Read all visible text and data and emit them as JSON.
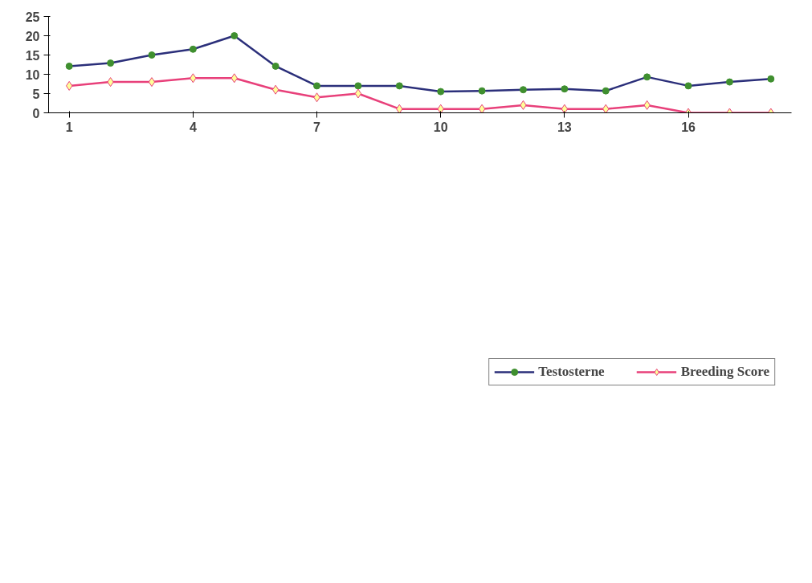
{
  "chart_data": {
    "type": "line",
    "x": [
      1,
      2,
      3,
      4,
      5,
      6,
      7,
      8,
      9,
      10,
      11,
      12,
      13,
      14,
      15,
      16,
      17,
      18
    ],
    "xlim": [
      0.5,
      18.5
    ],
    "xticks": [
      1,
      4,
      7,
      10,
      13,
      16
    ],
    "ylim": [
      0,
      25
    ],
    "yticks": [
      0,
      5,
      10,
      15,
      20,
      25
    ],
    "grid": false,
    "legend": "bottom",
    "series": [
      {
        "name": "Testosterne",
        "color": "#2b2f7a",
        "marker": "circle",
        "values": [
          12.1,
          12.9,
          15,
          16.5,
          20,
          12.1,
          7,
          7,
          7,
          5.5,
          5.7,
          6,
          6.2,
          5.7,
          9.3,
          7,
          8,
          8.8
        ]
      },
      {
        "name": "Breeding Score",
        "color": "#e8407a",
        "marker": "diamond",
        "values": [
          7,
          8,
          8,
          9,
          9,
          6,
          4,
          5,
          1,
          1,
          1,
          2,
          1,
          1,
          2,
          0,
          0,
          0
        ]
      }
    ]
  }
}
